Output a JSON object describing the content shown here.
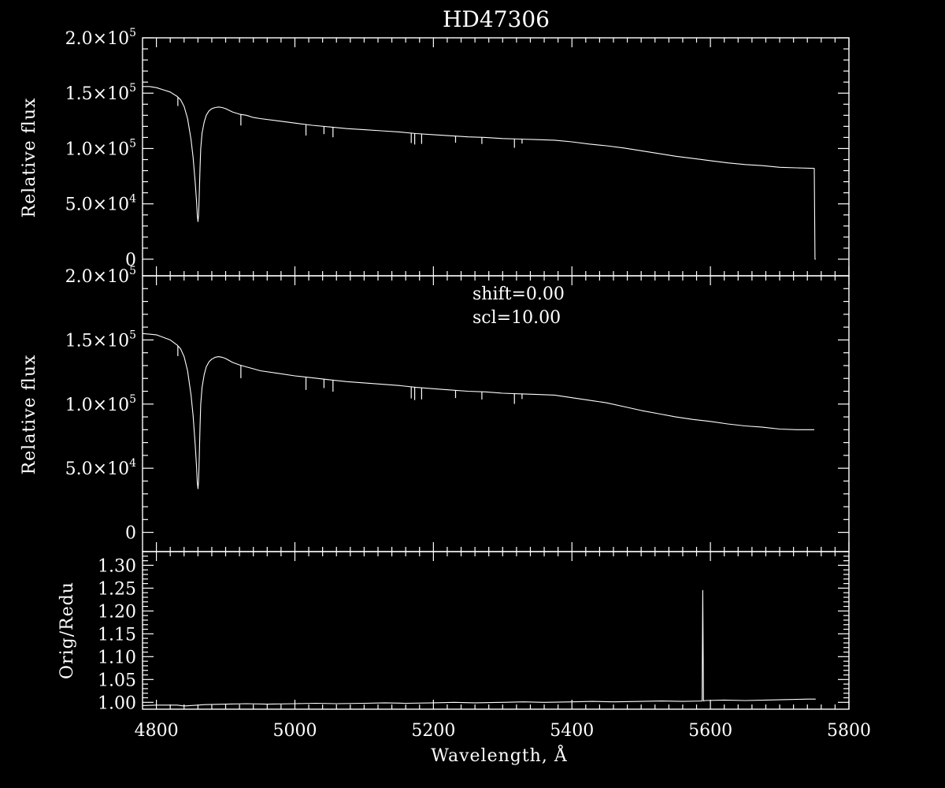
{
  "chart_data": [
    {
      "type": "line",
      "title": "HD47306",
      "ylabel": "Relative flux",
      "xlim": [
        4780,
        5800
      ],
      "ylim": [
        -15000,
        200000
      ],
      "yticks": [
        {
          "value": 0,
          "mantissa": "0",
          "exponent": ""
        },
        {
          "value": 50000,
          "mantissa": "5.0×10",
          "exponent": "4"
        },
        {
          "value": 100000,
          "mantissa": "1.0×10",
          "exponent": "5"
        },
        {
          "value": 150000,
          "mantissa": "1.5×10",
          "exponent": "5"
        },
        {
          "value": 200000,
          "mantissa": "2.0×10",
          "exponent": "5"
        }
      ],
      "x": [
        4780,
        4790,
        4800,
        4810,
        4820,
        4830,
        4835,
        4840,
        4845,
        4850,
        4853,
        4856,
        4858,
        4859,
        4860,
        4861,
        4862,
        4863,
        4864,
        4866,
        4869,
        4872,
        4876,
        4880,
        4885,
        4890,
        4895,
        4900,
        4910,
        4920,
        4930,
        4940,
        4950,
        4975,
        5000,
        5025,
        5050,
        5075,
        5100,
        5125,
        5150,
        5175,
        5200,
        5225,
        5250,
        5275,
        5300,
        5325,
        5350,
        5375,
        5400,
        5425,
        5450,
        5475,
        5500,
        5525,
        5550,
        5575,
        5600,
        5625,
        5650,
        5675,
        5700,
        5725,
        5750,
        5751,
        5752
      ],
      "y": [
        156000,
        156000,
        155000,
        153000,
        151000,
        147000,
        144000,
        138000,
        127000,
        108000,
        92000,
        70000,
        52000,
        40000,
        34000,
        40000,
        60000,
        82000,
        100000,
        114000,
        124000,
        130000,
        134000,
        136000,
        137000,
        137500,
        137000,
        136000,
        133000,
        131000,
        130000,
        128000,
        127000,
        125000,
        123000,
        121000,
        119500,
        118000,
        117000,
        116000,
        115000,
        113500,
        112500,
        111500,
        110500,
        110000,
        109000,
        108500,
        108000,
        107500,
        106000,
        104000,
        102500,
        100500,
        98000,
        95500,
        93000,
        91000,
        89000,
        87000,
        85500,
        84500,
        83000,
        82500,
        82000,
        0,
        0
      ],
      "absorption_lines": [
        {
          "x": 4831,
          "depth": 8000
        },
        {
          "x": 4922,
          "depth": 10000
        },
        {
          "x": 5016,
          "depth": 10000
        },
        {
          "x": 5042,
          "depth": 7000
        },
        {
          "x": 5055,
          "depth": 9000
        },
        {
          "x": 5168,
          "depth": 9000
        },
        {
          "x": 5173,
          "depth": 10000
        },
        {
          "x": 5183,
          "depth": 9000
        },
        {
          "x": 5232,
          "depth": 6000
        },
        {
          "x": 5270,
          "depth": 6000
        },
        {
          "x": 5317,
          "depth": 8000
        },
        {
          "x": 5328,
          "depth": 4000
        }
      ]
    },
    {
      "type": "line",
      "ylabel": "Relative flux",
      "annotations": [
        "shift=0.00",
        "scl=10.00"
      ],
      "xlim": [
        4780,
        5800
      ],
      "ylim": [
        -15000,
        200000
      ],
      "yticks": [
        {
          "value": 0,
          "mantissa": "0",
          "exponent": ""
        },
        {
          "value": 50000,
          "mantissa": "5.0×10",
          "exponent": "4"
        },
        {
          "value": 100000,
          "mantissa": "1.0×10",
          "exponent": "5"
        },
        {
          "value": 150000,
          "mantissa": "1.5×10",
          "exponent": "5"
        },
        {
          "value": 200000,
          "mantissa": "2.0×10",
          "exponent": "5"
        }
      ],
      "x": [
        4780,
        4790,
        4800,
        4810,
        4820,
        4830,
        4835,
        4840,
        4845,
        4850,
        4853,
        4856,
        4858,
        4859,
        4860,
        4861,
        4862,
        4863,
        4864,
        4866,
        4869,
        4872,
        4876,
        4880,
        4885,
        4890,
        4895,
        4900,
        4910,
        4920,
        4930,
        4940,
        4950,
        4975,
        5000,
        5025,
        5050,
        5075,
        5100,
        5125,
        5150,
        5175,
        5200,
        5225,
        5250,
        5275,
        5300,
        5325,
        5350,
        5375,
        5400,
        5425,
        5450,
        5475,
        5500,
        5525,
        5550,
        5575,
        5600,
        5625,
        5650,
        5675,
        5700,
        5725,
        5750
      ],
      "y": [
        155000,
        154500,
        154000,
        152000,
        150000,
        146000,
        143000,
        137000,
        126000,
        107000,
        91000,
        69000,
        51000,
        39000,
        34000,
        40000,
        60000,
        82000,
        100000,
        113000,
        123000,
        129000,
        133000,
        135000,
        136500,
        137000,
        136500,
        135500,
        132500,
        130500,
        129000,
        127500,
        126000,
        124000,
        122000,
        120500,
        119000,
        117500,
        116500,
        115500,
        114500,
        113000,
        112000,
        111000,
        110000,
        109500,
        108500,
        108000,
        107500,
        107000,
        105000,
        103000,
        101000,
        98000,
        95000,
        92500,
        90000,
        88000,
        86500,
        84500,
        83000,
        82000,
        80500,
        80000,
        80000
      ],
      "absorption_lines": [
        {
          "x": 4831,
          "depth": 8000
        },
        {
          "x": 4922,
          "depth": 10000
        },
        {
          "x": 5016,
          "depth": 10000
        },
        {
          "x": 5042,
          "depth": 7000
        },
        {
          "x": 5055,
          "depth": 9000
        },
        {
          "x": 5168,
          "depth": 9000
        },
        {
          "x": 5173,
          "depth": 10000
        },
        {
          "x": 5183,
          "depth": 9000
        },
        {
          "x": 5232,
          "depth": 6000
        },
        {
          "x": 5270,
          "depth": 6000
        },
        {
          "x": 5317,
          "depth": 8000
        },
        {
          "x": 5328,
          "depth": 4000
        }
      ]
    },
    {
      "type": "line",
      "ylabel": "Orig/Redu",
      "xlabel": "Wavelength, Å",
      "xlim": [
        4780,
        5800
      ],
      "ylim": [
        0.985,
        1.33
      ],
      "yticks": [
        {
          "value": 1.0,
          "label": "1.00"
        },
        {
          "value": 1.05,
          "label": "1.05"
        },
        {
          "value": 1.1,
          "label": "1.10"
        },
        {
          "value": 1.15,
          "label": "1.15"
        },
        {
          "value": 1.2,
          "label": "1.20"
        },
        {
          "value": 1.25,
          "label": "1.25"
        },
        {
          "value": 1.3,
          "label": "1.30"
        }
      ],
      "xticks": [
        {
          "value": 4800,
          "label": "4800"
        },
        {
          "value": 5000,
          "label": "5000"
        },
        {
          "value": 5200,
          "label": "5200"
        },
        {
          "value": 5400,
          "label": "5400"
        },
        {
          "value": 5600,
          "label": "5600"
        },
        {
          "value": 5800,
          "label": "5800"
        }
      ],
      "x": [
        4780,
        4800,
        4830,
        4840,
        4870,
        4900,
        4930,
        4960,
        5000,
        5030,
        5060,
        5100,
        5130,
        5160,
        5200,
        5230,
        5260,
        5300,
        5330,
        5360,
        5400,
        5430,
        5460,
        5500,
        5530,
        5560,
        5588,
        5589,
        5590,
        5592,
        5620,
        5650,
        5680,
        5710,
        5740,
        5752
      ],
      "y": [
        0.993,
        0.994,
        0.994,
        0.992,
        0.995,
        0.996,
        0.997,
        0.996,
        0.997,
        0.998,
        0.997,
        0.998,
        0.999,
        0.998,
        0.999,
        1.0,
        0.999,
        1.0,
        1.001,
        1.0,
        1.001,
        1.002,
        1.001,
        1.002,
        1.003,
        1.002,
        1.003,
        1.245,
        1.003,
        1.004,
        1.005,
        1.004,
        1.005,
        1.006,
        1.007,
        1.007
      ]
    }
  ]
}
